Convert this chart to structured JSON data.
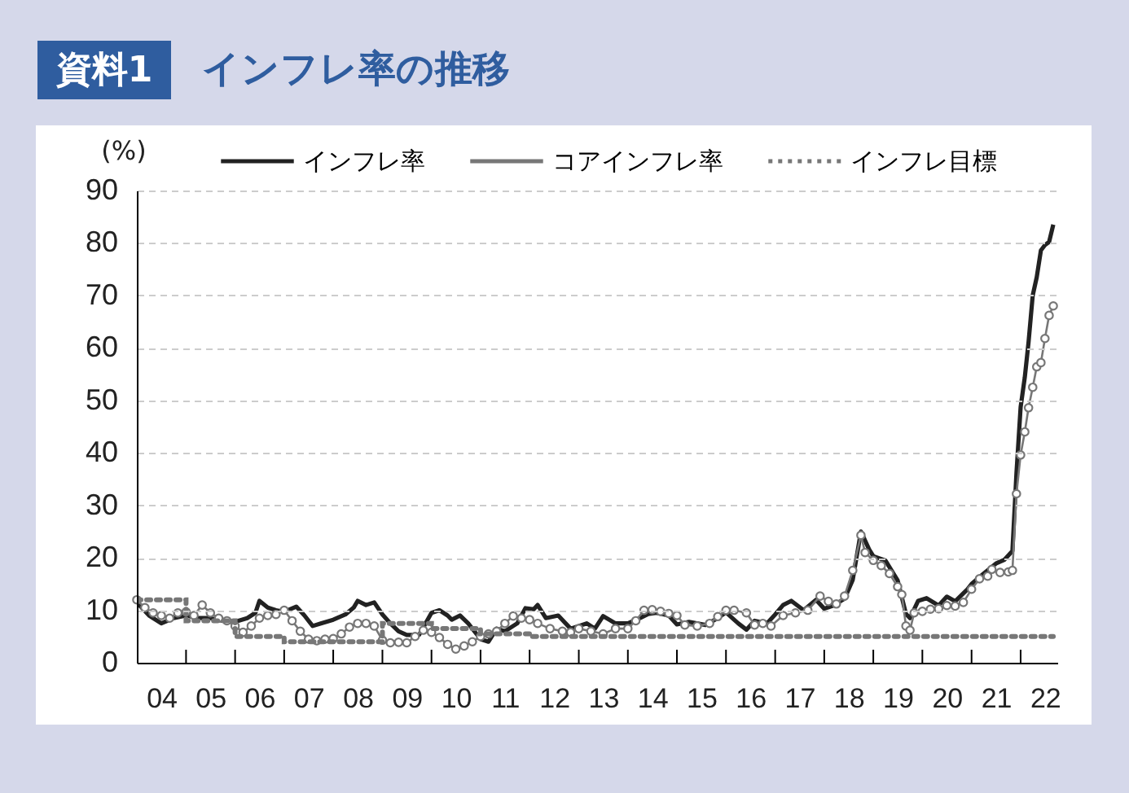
{
  "chart_data": {
    "type": "line",
    "title": "インフレ率の推移",
    "annotations": [
      "資料1"
    ],
    "ylabel": "(%)",
    "grid": "y",
    "legend": "top",
    "xlim": [
      "2004-01",
      "2022-10"
    ],
    "ylim": [
      0,
      90
    ],
    "yticks": [
      0,
      10,
      20,
      30,
      40,
      50,
      60,
      70,
      80,
      90
    ],
    "xticks": [
      {
        "value": "2004-07",
        "label": "04"
      },
      {
        "value": "2005-07",
        "label": "05"
      },
      {
        "value": "2006-07",
        "label": "06"
      },
      {
        "value": "2007-07",
        "label": "07"
      },
      {
        "value": "2008-07",
        "label": "08"
      },
      {
        "value": "2009-07",
        "label": "09"
      },
      {
        "value": "2010-07",
        "label": "10"
      },
      {
        "value": "2011-07",
        "label": "11"
      },
      {
        "value": "2012-07",
        "label": "12"
      },
      {
        "value": "2013-07",
        "label": "13"
      },
      {
        "value": "2014-07",
        "label": "14"
      },
      {
        "value": "2015-07",
        "label": "15"
      },
      {
        "value": "2016-07",
        "label": "16"
      },
      {
        "value": "2017-07",
        "label": "17"
      },
      {
        "value": "2018-07",
        "label": "18"
      },
      {
        "value": "2019-07",
        "label": "19"
      },
      {
        "value": "2020-07",
        "label": "20"
      },
      {
        "value": "2021-07",
        "label": "21"
      },
      {
        "value": "2022-07",
        "label": "22"
      },
      {
        "value": "2005-01",
        "label": null
      },
      {
        "value": "2006-01",
        "label": null
      },
      {
        "value": "2007-01",
        "label": null
      },
      {
        "value": "2008-01",
        "label": null
      },
      {
        "value": "2009-01",
        "label": null
      },
      {
        "value": "2010-01",
        "label": null
      },
      {
        "value": "2011-01",
        "label": null
      },
      {
        "value": "2012-01",
        "label": null
      },
      {
        "value": "2013-01",
        "label": null
      },
      {
        "value": "2014-01",
        "label": null
      },
      {
        "value": "2015-01",
        "label": null
      },
      {
        "value": "2016-01",
        "label": null
      },
      {
        "value": "2017-01",
        "label": null
      },
      {
        "value": "2018-01",
        "label": null
      },
      {
        "value": "2019-01",
        "label": null
      },
      {
        "value": "2020-01",
        "label": null
      },
      {
        "value": "2021-01",
        "label": null
      },
      {
        "value": "2022-01",
        "label": null
      }
    ],
    "series": [
      {
        "name": "インフレ率",
        "color": "#222222",
        "line_style": "solid",
        "marker": "none",
        "x": [
          "2004-01",
          "2004-04",
          "2004-07",
          "2004-10",
          "2005-01",
          "2005-04",
          "2005-07",
          "2005-10",
          "2006-01",
          "2006-04",
          "2006-06",
          "2006-07",
          "2006-09",
          "2006-11",
          "2007-01",
          "2007-04",
          "2007-06",
          "2007-08",
          "2007-10",
          "2008-01",
          "2008-04",
          "2008-06",
          "2008-07",
          "2008-09",
          "2008-11",
          "2009-01",
          "2009-03",
          "2009-05",
          "2009-07",
          "2009-10",
          "2010-01",
          "2010-03",
          "2010-05",
          "2010-06",
          "2010-08",
          "2010-10",
          "2011-01",
          "2011-03",
          "2011-05",
          "2011-07",
          "2011-10",
          "2011-12",
          "2012-02",
          "2012-03",
          "2012-05",
          "2012-08",
          "2012-11",
          "2013-01",
          "2013-03",
          "2013-05",
          "2013-07",
          "2013-10",
          "2014-01",
          "2014-04",
          "2014-06",
          "2014-08",
          "2014-11",
          "2015-01",
          "2015-04",
          "2015-08",
          "2015-11",
          "2016-01",
          "2016-04",
          "2016-06",
          "2016-08",
          "2016-11",
          "2017-01",
          "2017-03",
          "2017-05",
          "2017-08",
          "2017-11",
          "2018-01",
          "2018-03",
          "2018-06",
          "2018-08",
          "2018-10",
          "2018-12",
          "2019-01",
          "2019-04",
          "2019-07",
          "2019-09",
          "2019-10",
          "2019-12",
          "2020-02",
          "2020-05",
          "2020-07",
          "2020-09",
          "2020-12",
          "2021-01",
          "2021-04",
          "2021-07",
          "2021-09",
          "2021-11",
          "2021-12",
          "2022-01",
          "2022-02",
          "2022-03",
          "2022-04",
          "2022-05",
          "2022-06",
          "2022-07",
          "2022-08",
          "2022-09"
        ],
        "values": [
          11.5,
          9,
          7.5,
          8.5,
          9,
          8.5,
          8.5,
          8,
          7.8,
          8.5,
          9.5,
          11.8,
          10.5,
          10,
          9.7,
          10.7,
          9,
          7,
          7.5,
          8.2,
          9.2,
          10.5,
          11.8,
          11,
          11.5,
          9.2,
          7.5,
          6,
          5.3,
          5.3,
          9.5,
          10,
          9,
          8.2,
          9,
          7.5,
          4.5,
          4,
          6.5,
          6,
          7.5,
          10.4,
          10.2,
          11,
          8.5,
          9,
          6.5,
          7,
          7.5,
          6.5,
          8.9,
          7.5,
          7.5,
          8.5,
          9.3,
          9.5,
          9,
          7.3,
          7.8,
          7.2,
          8.5,
          9.6,
          7.5,
          6.3,
          8,
          7.5,
          9.2,
          11,
          11.8,
          10,
          12,
          10.3,
          10.8,
          12.2,
          15.8,
          25,
          21.6,
          20.3,
          19.5,
          15.7,
          9.3,
          8.5,
          11.8,
          12.3,
          10.9,
          12.6,
          11.7,
          14,
          15,
          17,
          18.9,
          19.6,
          21.3,
          36.1,
          48.7,
          54.4,
          61.1,
          70,
          73.5,
          78.6,
          79.6,
          80.2,
          83.5
        ]
      },
      {
        "name": "コアインフレ率",
        "color": "#777777",
        "line_style": "solid",
        "marker": "circle",
        "x": [
          "2004-01",
          "2004-03",
          "2004-05",
          "2004-07",
          "2004-09",
          "2004-11",
          "2005-01",
          "2005-03",
          "2005-05",
          "2005-07",
          "2005-09",
          "2005-11",
          "2006-01",
          "2006-03",
          "2006-05",
          "2006-07",
          "2006-09",
          "2006-11",
          "2007-01",
          "2007-03",
          "2007-05",
          "2007-07",
          "2007-09",
          "2007-11",
          "2008-01",
          "2008-03",
          "2008-05",
          "2008-07",
          "2008-09",
          "2008-11",
          "2009-01",
          "2009-03",
          "2009-05",
          "2009-07",
          "2009-09",
          "2009-11",
          "2010-01",
          "2010-03",
          "2010-05",
          "2010-07",
          "2010-09",
          "2010-11",
          "2011-01",
          "2011-03",
          "2011-05",
          "2011-07",
          "2011-09",
          "2011-11",
          "2012-01",
          "2012-03",
          "2012-06",
          "2012-09",
          "2012-11",
          "2013-01",
          "2013-04",
          "2013-07",
          "2013-10",
          "2014-01",
          "2014-03",
          "2014-05",
          "2014-07",
          "2014-09",
          "2014-11",
          "2015-01",
          "2015-03",
          "2015-06",
          "2015-09",
          "2015-11",
          "2016-01",
          "2016-03",
          "2016-06",
          "2016-08",
          "2016-10",
          "2016-12",
          "2017-03",
          "2017-06",
          "2017-09",
          "2017-12",
          "2018-02",
          "2018-04",
          "2018-06",
          "2018-08",
          "2018-10",
          "2018-11",
          "2019-01",
          "2019-03",
          "2019-05",
          "2019-07",
          "2019-08",
          "2019-09",
          "2019-10",
          "2019-11",
          "2020-01",
          "2020-03",
          "2020-05",
          "2020-07",
          "2020-09",
          "2020-11",
          "2021-01",
          "2021-03",
          "2021-05",
          "2021-06",
          "2021-08",
          "2021-10",
          "2021-11",
          "2021-12",
          "2022-01",
          "2022-02",
          "2022-03",
          "2022-04",
          "2022-05",
          "2022-06",
          "2022-07",
          "2022-08",
          "2022-09"
        ],
        "values": [
          12,
          10.5,
          9.5,
          9,
          8.5,
          9.5,
          9.7,
          9,
          11,
          9.5,
          8.5,
          8,
          7,
          5.8,
          7,
          8.5,
          9,
          9.2,
          10,
          8,
          6,
          4.5,
          4.2,
          4.5,
          4.6,
          5.5,
          6.8,
          7.5,
          7.5,
          7,
          4.3,
          3.8,
          3.9,
          3.8,
          5,
          6.2,
          5.8,
          4.8,
          3.5,
          2.6,
          3.2,
          4,
          5,
          5.5,
          6,
          7.5,
          8.9,
          8.5,
          8.2,
          7.5,
          6.5,
          6,
          5.8,
          6.5,
          6,
          5.5,
          6.5,
          6.5,
          8,
          10,
          10.1,
          9.8,
          9.4,
          9,
          7.2,
          7,
          7.5,
          8.8,
          10,
          10,
          9.5,
          7.2,
          7.5,
          7,
          9,
          9.5,
          10,
          12.7,
          11.7,
          11.2,
          12.7,
          17.6,
          24.3,
          21,
          19.5,
          18.5,
          17,
          14.5,
          13,
          7,
          6.2,
          9.5,
          9.8,
          10.2,
          10.3,
          10.9,
          10.8,
          11.5,
          14,
          16,
          16.5,
          17.8,
          17.2,
          17.3,
          17.6,
          32.2,
          39.6,
          44,
          48.6,
          52.5,
          56.4,
          57.2,
          61.8,
          66.2,
          68
        ]
      },
      {
        "name": "インフレ目標",
        "type": "step",
        "color": "#777777",
        "line_style": "dotted",
        "marker": "none",
        "x": [
          "2004-01",
          "2005-01",
          "2006-01",
          "2007-01",
          "2009-01",
          "2010-01",
          "2011-01",
          "2012-01",
          "2022-09"
        ],
        "values": [
          12,
          8,
          5,
          4,
          7.5,
          6.5,
          5.5,
          5,
          5
        ]
      }
    ]
  }
}
